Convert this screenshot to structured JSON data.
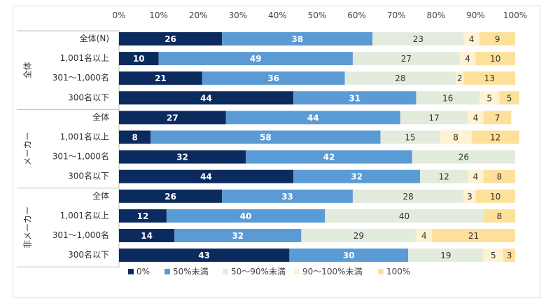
{
  "chart_data": {
    "type": "bar",
    "orientation": "horizontal-stacked",
    "unit": "%",
    "xlim": [
      0,
      100
    ],
    "xticks": [
      "0%",
      "10%",
      "20%",
      "30%",
      "40%",
      "50%",
      "60%",
      "70%",
      "80%",
      "90%",
      "100%"
    ],
    "legend_position": "bottom",
    "series_names": [
      "0%",
      "50%未満",
      "50～90%未満",
      "90～100%未満",
      "100%"
    ],
    "colors": [
      "#0b2b5e",
      "#5b9bd5",
      "#e3ecdc",
      "#fdf2d2",
      "#fde09a"
    ],
    "label_colors": [
      "#ffffff",
      "#ffffff",
      "#333333",
      "#333333",
      "#333333"
    ],
    "groups": [
      {
        "name": "全体",
        "rows": [
          {
            "label": "全体(N)",
            "values": [
              26,
              38,
              23,
              4,
              9
            ]
          },
          {
            "label": "1,001名以上",
            "values": [
              10,
              49,
              27,
              4,
              10
            ]
          },
          {
            "label": "301～1,000名",
            "values": [
              21,
              36,
              28,
              2,
              13
            ]
          },
          {
            "label": "300名以下",
            "values": [
              44,
              31,
              16,
              5,
              5
            ]
          }
        ]
      },
      {
        "name": "メーカー",
        "rows": [
          {
            "label": "全体",
            "values": [
              27,
              44,
              17,
              4,
              7
            ]
          },
          {
            "label": "1,001名以上",
            "values": [
              8,
              58,
              15,
              8,
              12
            ]
          },
          {
            "label": "301～1,000名",
            "values": [
              32,
              42,
              26,
              0,
              0
            ]
          },
          {
            "label": "300名以下",
            "values": [
              44,
              32,
              12,
              4,
              8
            ]
          }
        ]
      },
      {
        "name": "非メーカー",
        "rows": [
          {
            "label": "全体",
            "values": [
              26,
              33,
              28,
              3,
              10
            ]
          },
          {
            "label": "1,001名以上",
            "values": [
              12,
              40,
              40,
              0,
              8
            ]
          },
          {
            "label": "301～1,000名",
            "values": [
              14,
              32,
              29,
              4,
              21
            ]
          },
          {
            "label": "300名以下",
            "values": [
              43,
              30,
              19,
              5,
              3
            ]
          }
        ]
      }
    ]
  }
}
